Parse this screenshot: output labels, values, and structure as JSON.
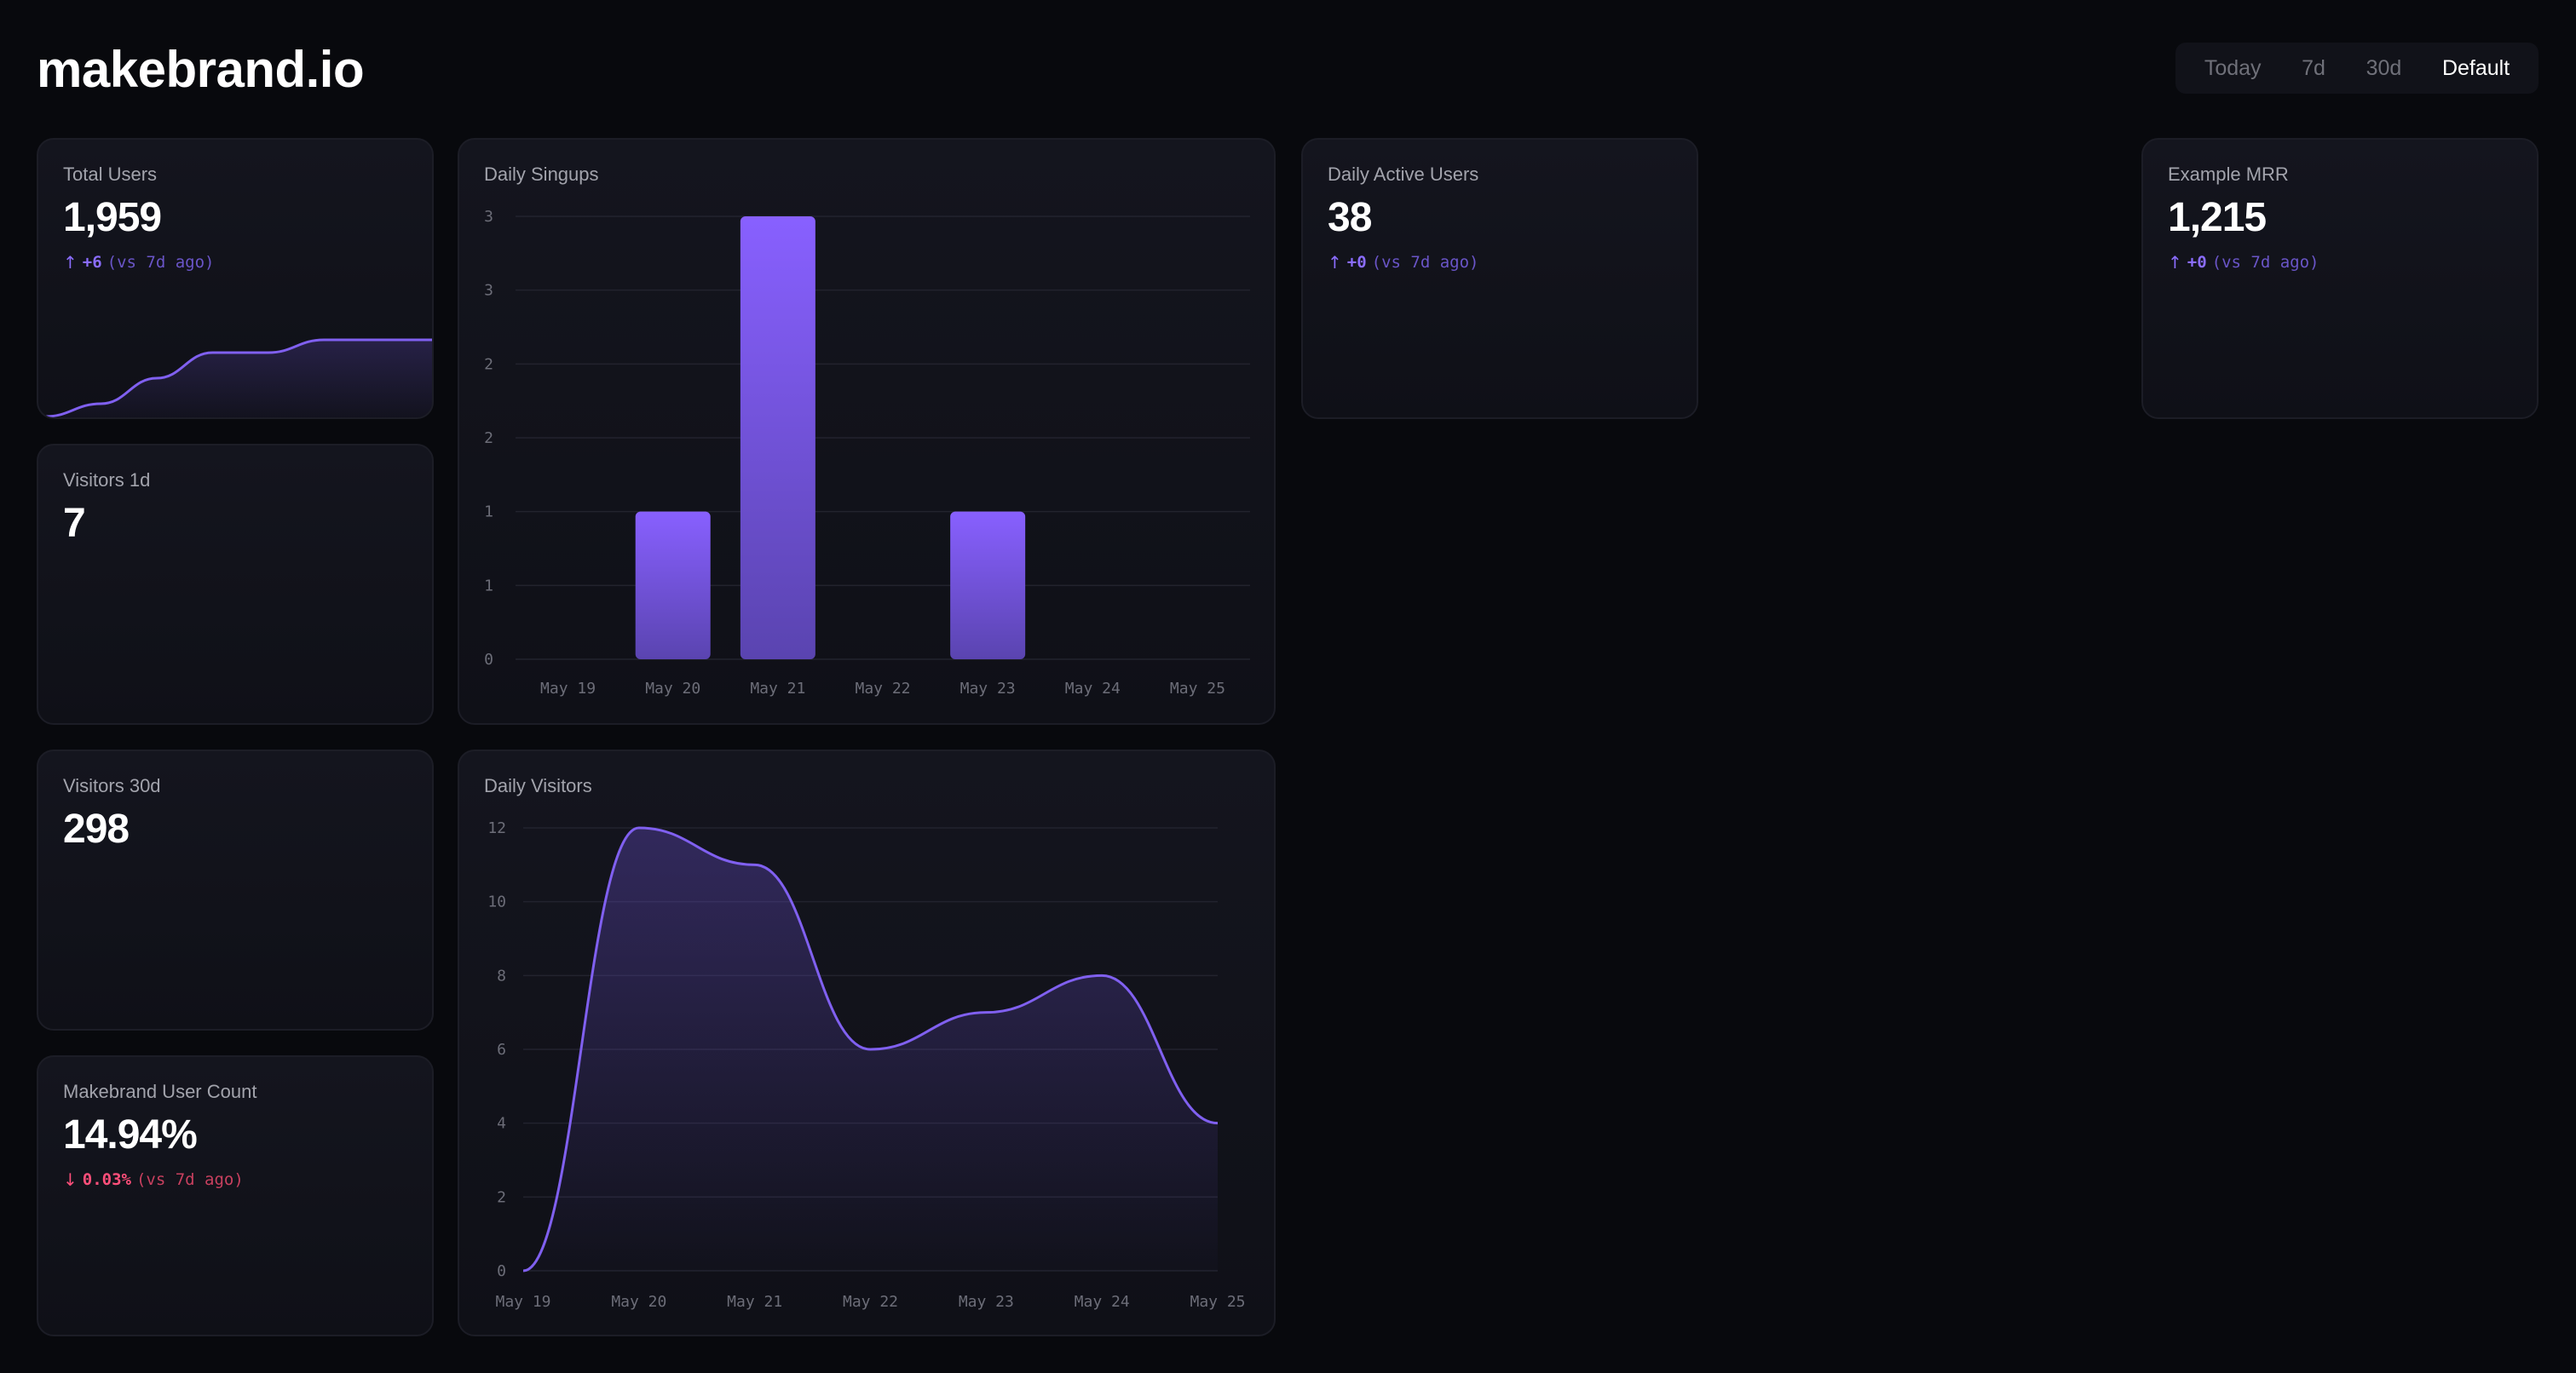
{
  "app": {
    "title": "makebrand.io"
  },
  "range_selector": {
    "options": [
      "Today",
      "7d",
      "30d",
      "Default"
    ],
    "selected": "Default"
  },
  "cards": {
    "total_users": {
      "title": "Total Users",
      "value": "1,959",
      "delta_arrow": "↑",
      "delta": "+6",
      "comparison": "(vs 7d ago)"
    },
    "visitors_1d": {
      "title": "Visitors 1d",
      "value": "7"
    },
    "visitors_30d": {
      "title": "Visitors 30d",
      "value": "298"
    },
    "makebrand_user_count": {
      "title": "Makebrand User Count",
      "value": "14.94%",
      "delta_arrow": "↓",
      "delta": "0.03%",
      "comparison": "(vs 7d ago)"
    },
    "daily_active_users": {
      "title": "Daily Active Users",
      "value": "38",
      "delta_arrow": "↑",
      "delta": "+0",
      "comparison": "(vs 7d ago)"
    },
    "example_mrr": {
      "title": "Example MRR",
      "value": "1,215",
      "delta_arrow": "↑",
      "delta": "+0",
      "comparison": "(vs 7d ago)"
    },
    "daily_signups": {
      "title": "Daily Singups"
    },
    "daily_visitors": {
      "title": "Daily Visitors"
    }
  },
  "colors": {
    "accent": "#7c5cf5",
    "accent_light": "#8b68ff",
    "negative": "#ff4f7a",
    "background": "#08090d",
    "card": "#12131b"
  },
  "chart_data": [
    {
      "type": "bar",
      "title": "Daily Singups",
      "categories": [
        "May 19",
        "May 20",
        "May 21",
        "May 22",
        "May 23",
        "May 24",
        "May 25"
      ],
      "values": [
        0,
        1,
        3,
        0,
        1,
        0,
        0
      ],
      "y_tick_labels": [
        "0",
        "1",
        "1",
        "2",
        "2",
        "3",
        "3"
      ],
      "ylim": [
        0,
        3
      ],
      "grid": true
    },
    {
      "type": "area",
      "title": "Daily Visitors",
      "categories": [
        "May 19",
        "May 20",
        "May 21",
        "May 22",
        "May 23",
        "May 24",
        "May 25"
      ],
      "values": [
        0,
        12,
        11,
        6,
        7,
        8,
        4
      ],
      "y_ticks": [
        0,
        2,
        4,
        6,
        8,
        10,
        12
      ],
      "ylim": [
        0,
        12
      ],
      "grid": true
    },
    {
      "type": "area",
      "title": "Total Users",
      "values": [
        1953,
        1954,
        1956,
        1958,
        1958,
        1959,
        1959,
        1959
      ]
    }
  ]
}
